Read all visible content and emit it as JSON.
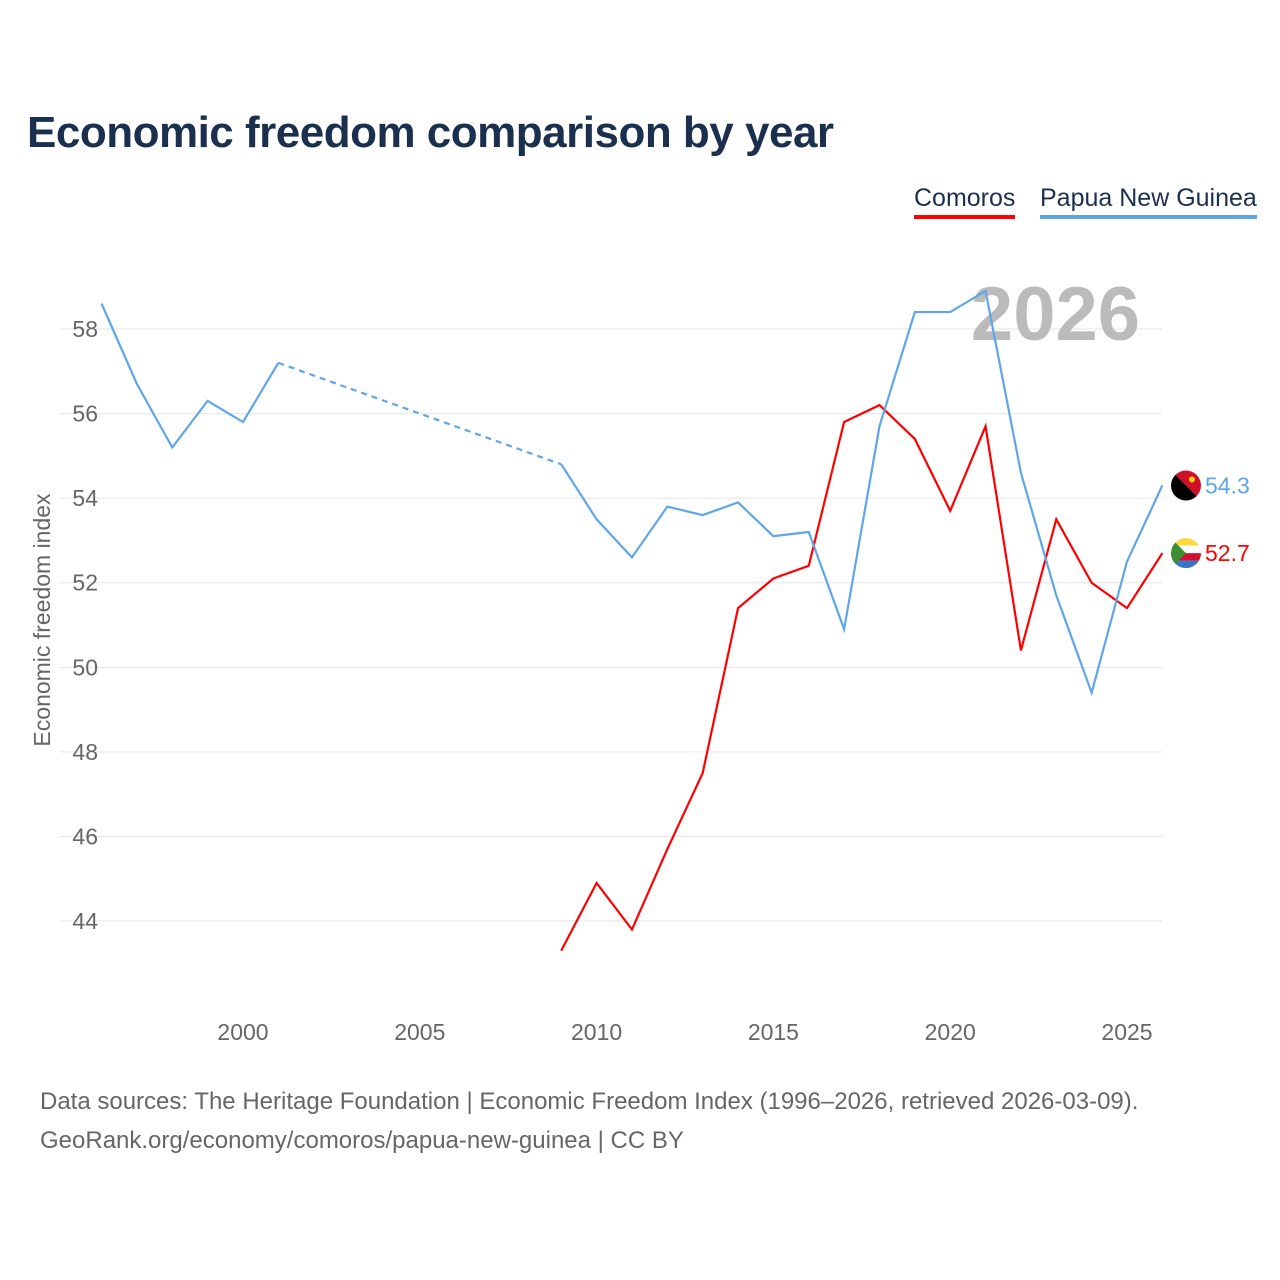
{
  "chart_data": {
    "type": "line",
    "title": "Economic freedom comparison by year",
    "xlabel": "",
    "ylabel": "Economic freedom index",
    "xlim": [
      1996,
      2026
    ],
    "ylim": [
      41.9,
      59.4
    ],
    "x_ticks": [
      "2000",
      "2005",
      "2010",
      "2015",
      "2020",
      "2025"
    ],
    "y_ticks": [
      "44",
      "46",
      "48",
      "50",
      "52",
      "54",
      "56",
      "58"
    ],
    "grid": true,
    "legend_position": "top-right",
    "year_label": "2026",
    "series": [
      {
        "name": "Comoros",
        "color": "#ff0000",
        "end_label": "52.7",
        "points": [
          [
            2009,
            43.3
          ],
          [
            2010,
            44.9
          ],
          [
            2011,
            43.8
          ],
          [
            2012,
            45.7
          ],
          [
            2013,
            47.5
          ],
          [
            2014,
            51.4
          ],
          [
            2015,
            52.1
          ],
          [
            2016,
            52.4
          ],
          [
            2017,
            55.8
          ],
          [
            2018,
            56.2
          ],
          [
            2019,
            55.4
          ],
          [
            2020,
            53.7
          ],
          [
            2021,
            55.7
          ],
          [
            2022,
            50.4
          ],
          [
            2023,
            53.5
          ],
          [
            2024,
            52.0
          ],
          [
            2025,
            51.4
          ],
          [
            2026,
            52.7
          ]
        ]
      },
      {
        "name": "Papua New Guinea",
        "color": "#5ea6ea",
        "end_label": "54.3",
        "points": [
          [
            1996,
            58.6
          ],
          [
            1997,
            56.7
          ],
          [
            1998,
            55.2
          ],
          [
            1999,
            56.3
          ],
          [
            2000,
            55.8
          ],
          [
            2001,
            57.2
          ],
          [
            2009,
            54.8
          ],
          [
            2010,
            53.5
          ],
          [
            2011,
            52.6
          ],
          [
            2012,
            53.8
          ],
          [
            2013,
            53.6
          ],
          [
            2014,
            53.9
          ],
          [
            2015,
            53.1
          ],
          [
            2016,
            53.2
          ],
          [
            2017,
            50.9
          ],
          [
            2018,
            55.7
          ],
          [
            2019,
            58.4
          ],
          [
            2020,
            58.4
          ],
          [
            2021,
            58.9
          ],
          [
            2022,
            54.6
          ],
          [
            2023,
            51.7
          ],
          [
            2024,
            49.4
          ],
          [
            2025,
            52.5
          ],
          [
            2026,
            54.3
          ]
        ],
        "gap_after": 2001
      }
    ]
  },
  "footer": {
    "line1": "Data sources: The Heritage Foundation | Economic Freedom Index (1996–2026, retrieved 2026-03-09).",
    "line2": "GeoRank.org/economy/comoros/papua-new-guinea | CC BY"
  }
}
